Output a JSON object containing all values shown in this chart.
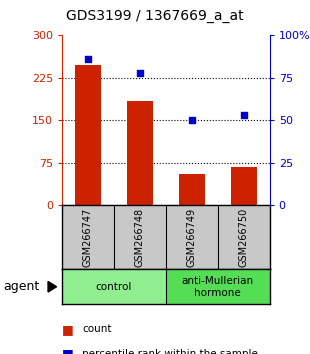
{
  "title": "GDS3199 / 1367669_a_at",
  "samples": [
    "GSM266747",
    "GSM266748",
    "GSM266749",
    "GSM266750"
  ],
  "counts": [
    248,
    185,
    55,
    68
  ],
  "percentiles": [
    86,
    78,
    50,
    53
  ],
  "bar_color": "#CC2200",
  "dot_color": "#0000CC",
  "left_yticks": [
    0,
    75,
    150,
    225,
    300
  ],
  "right_yticks": [
    0,
    25,
    50,
    75,
    100
  ],
  "left_ylim": [
    0,
    300
  ],
  "right_ylim": [
    0,
    100
  ],
  "background_plot": "#FFFFFF",
  "background_sample": "#C8C8C8",
  "group_info": [
    {
      "start": 0,
      "end": 1,
      "label": "control",
      "color": "#90EE90"
    },
    {
      "start": 2,
      "end": 3,
      "label": "anti-Mullerian\nhormone",
      "color": "#55DD55"
    }
  ],
  "legend_items": [
    "count",
    "percentile rank within the sample"
  ],
  "agent_label": "agent"
}
